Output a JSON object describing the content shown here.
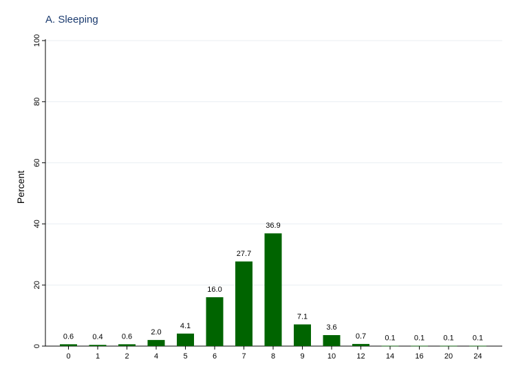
{
  "chart_data": {
    "type": "bar",
    "title": "A. Sleeping",
    "xlabel": "",
    "ylabel": "Percent",
    "categories": [
      "0",
      "1",
      "2",
      "4",
      "5",
      "6",
      "7",
      "8",
      "9",
      "10",
      "12",
      "14",
      "16",
      "20",
      "24"
    ],
    "values": [
      0.6,
      0.4,
      0.6,
      2.0,
      4.1,
      16.0,
      27.7,
      36.9,
      7.1,
      3.6,
      0.7,
      0.1,
      0.1,
      0.1,
      0.1
    ],
    "value_labels": [
      "0.6",
      "0.4",
      "0.6",
      "2.0",
      "4.1",
      "16.0",
      "27.7",
      "36.9",
      "7.1",
      "3.6",
      "0.7",
      "0.1",
      "0.1",
      "0.1",
      "0.1"
    ],
    "ylim": [
      0,
      100
    ],
    "yticks": [
      "0",
      "20",
      "40",
      "60",
      "80",
      "100"
    ],
    "grid": true,
    "bar_color": "#006400",
    "title_color": "#1a3a6e"
  }
}
